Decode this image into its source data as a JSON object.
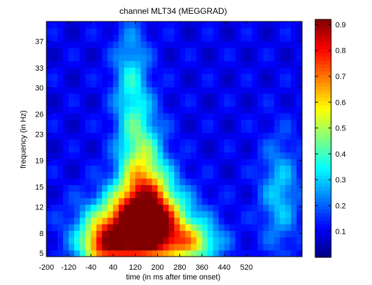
{
  "chart_data": {
    "type": "heatmap",
    "title": "channel MLT34 (MEGGRAD)",
    "xlabel": "time (in ms after time onset)",
    "ylabel": "frequency (in Hz)",
    "xlim": [
      -200,
      720
    ],
    "ylim": [
      4.5,
      40
    ],
    "xticks": [
      -200,
      -120,
      -40,
      40,
      120,
      200,
      280,
      360,
      440,
      520
    ],
    "yticks": [
      5,
      8,
      12,
      15,
      19,
      23,
      26,
      30,
      33,
      37
    ],
    "colorbar": {
      "colormap": "jet",
      "range": [
        0,
        0.92
      ],
      "ticks": [
        0.1,
        0.2,
        0.3,
        0.4,
        0.5,
        0.6,
        0.7,
        0.8,
        0.9
      ]
    },
    "blobs": [
      {
        "t_center": 135,
        "f_center": 8.3,
        "t_sigma": 120,
        "f_sigma": 3.6,
        "amplitude": 0.9
      },
      {
        "t_center": 160,
        "f_center": 13,
        "t_sigma": 70,
        "f_sigma": 4,
        "amplitude": 0.45
      },
      {
        "t_center": 140,
        "f_center": 20,
        "t_sigma": 55,
        "f_sigma": 5,
        "amplitude": 0.3
      },
      {
        "t_center": 105,
        "f_center": 31,
        "t_sigma": 45,
        "f_sigma": 6,
        "amplitude": 0.23
      },
      {
        "t_center": 0,
        "f_center": 6,
        "t_sigma": 55,
        "f_sigma": 2.2,
        "amplitude": 0.35
      },
      {
        "t_center": 330,
        "f_center": 6.5,
        "t_sigma": 70,
        "f_sigma": 2.0,
        "amplitude": 0.3
      },
      {
        "t_center": 640,
        "f_center": 14,
        "t_sigma": 50,
        "f_sigma": 6,
        "amplitude": 0.2
      }
    ],
    "background": 0.1
  }
}
